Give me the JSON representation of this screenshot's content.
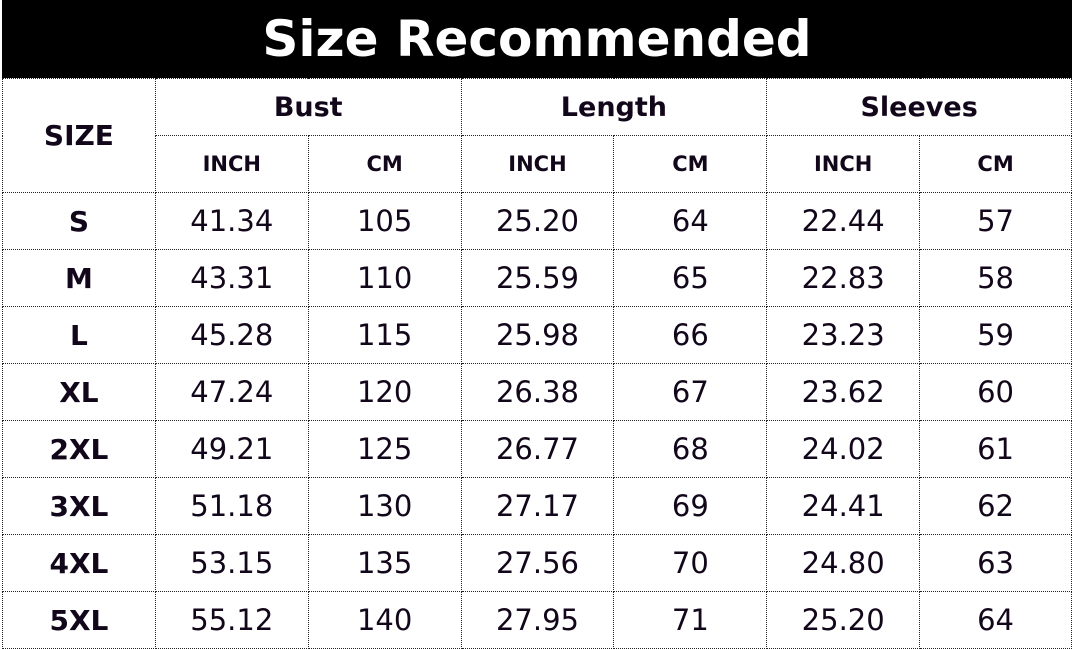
{
  "title": "Size Recommended",
  "header": {
    "size": "SIZE",
    "groups": [
      "Bust",
      "Length",
      "Sleeves"
    ],
    "units": [
      "INCH",
      "CM",
      "INCH",
      "CM",
      "INCH",
      "CM"
    ]
  },
  "rows": [
    {
      "size": "S",
      "values": [
        "41.34",
        "105",
        "25.20",
        "64",
        "22.44",
        "57"
      ]
    },
    {
      "size": "M",
      "values": [
        "43.31",
        "110",
        "25.59",
        "65",
        "22.83",
        "58"
      ]
    },
    {
      "size": "L",
      "values": [
        "45.28",
        "115",
        "25.98",
        "66",
        "23.23",
        "59"
      ]
    },
    {
      "size": "XL",
      "values": [
        "47.24",
        "120",
        "26.38",
        "67",
        "23.62",
        "60"
      ]
    },
    {
      "size": "2XL",
      "values": [
        "49.21",
        "125",
        "26.77",
        "68",
        "24.02",
        "61"
      ]
    },
    {
      "size": "3XL",
      "values": [
        "51.18",
        "130",
        "27.17",
        "69",
        "24.41",
        "62"
      ]
    },
    {
      "size": "4XL",
      "values": [
        "53.15",
        "135",
        "27.56",
        "70",
        "24.80",
        "63"
      ]
    },
    {
      "size": "5XL",
      "values": [
        "55.12",
        "140",
        "27.95",
        "71",
        "25.20",
        "64"
      ]
    }
  ]
}
